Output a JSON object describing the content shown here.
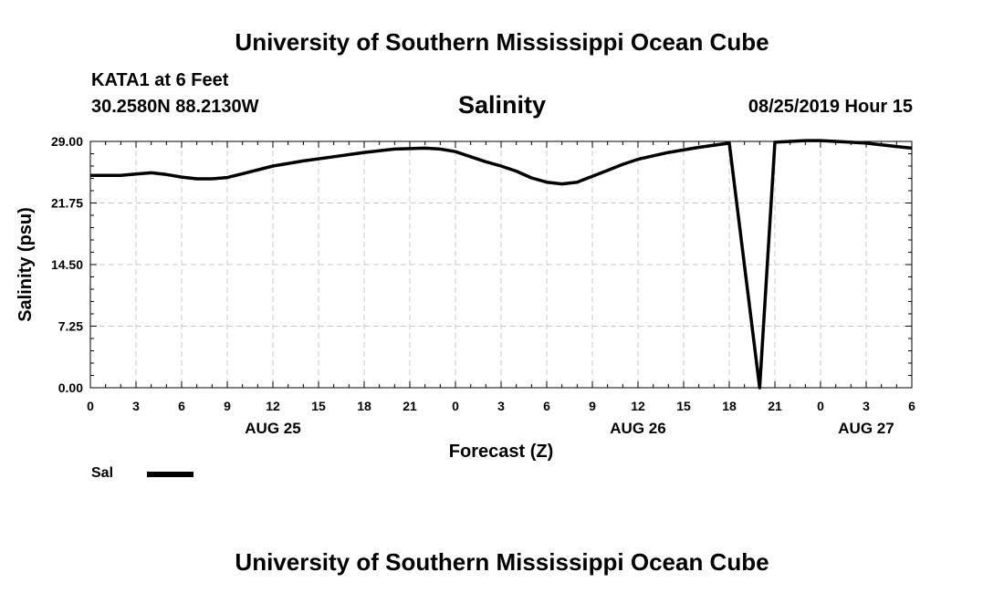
{
  "header": {
    "main_title": "University of Southern Mississippi Ocean Cube",
    "station": "KATA1 at 6 Feet",
    "coords": "30.2580N 88.2130W",
    "datetime": "08/25/2019 Hour 15",
    "footer_title": "University of Southern Mississippi Ocean Cube"
  },
  "chart_data": {
    "type": "line",
    "title": "Salinity",
    "xlabel": "Forecast (Z)",
    "ylabel": "Salinity (psu)",
    "ylim": [
      0,
      29
    ],
    "xlim": [
      0,
      54
    ],
    "x_unit": "forecast hours from 08/25/2019 00Z",
    "yticks": [
      "0.00",
      "7.25",
      "14.50",
      "21.75",
      "29.00"
    ],
    "ytick_values": [
      0,
      7.25,
      14.5,
      21.75,
      29
    ],
    "xtick_hours": [
      0,
      3,
      6,
      9,
      12,
      15,
      18,
      21,
      24,
      27,
      30,
      33,
      36,
      39,
      42,
      45,
      48,
      51,
      54
    ],
    "xtick_labels": [
      "0",
      "3",
      "6",
      "9",
      "12",
      "15",
      "18",
      "21",
      "0",
      "3",
      "6",
      "9",
      "12",
      "15",
      "18",
      "21",
      "0",
      "3",
      "6"
    ],
    "day_labels": [
      {
        "hour": 12,
        "label": "AUG 25"
      },
      {
        "hour": 36,
        "label": "AUG 26"
      },
      {
        "hour": 51,
        "label": "AUG 27"
      }
    ],
    "grid": true,
    "series": [
      {
        "name": "Sal",
        "color": "#000000",
        "x": [
          0,
          2,
          3,
          4,
          5,
          6,
          7,
          8,
          9,
          10,
          12,
          14,
          16,
          18,
          20,
          22,
          23,
          24,
          25,
          26,
          27,
          28,
          29,
          30,
          31,
          32,
          33,
          34,
          35,
          36,
          38,
          40,
          42,
          44,
          45,
          46,
          47,
          48,
          49,
          50,
          51,
          52,
          53,
          54
        ],
        "y": [
          25.0,
          25.0,
          25.15,
          25.3,
          25.1,
          24.8,
          24.6,
          24.6,
          24.75,
          25.2,
          26.1,
          26.7,
          27.2,
          27.7,
          28.1,
          28.2,
          28.1,
          27.8,
          27.2,
          26.6,
          26.1,
          25.5,
          24.7,
          24.2,
          24.0,
          24.2,
          24.9,
          25.6,
          26.3,
          26.9,
          27.7,
          28.3,
          28.8,
          0.0,
          28.9,
          29.0,
          29.1,
          29.1,
          29.0,
          28.9,
          28.8,
          28.6,
          28.4,
          28.2
        ]
      }
    ],
    "legend": {
      "position": "bottom-left",
      "label": "Sal"
    }
  }
}
